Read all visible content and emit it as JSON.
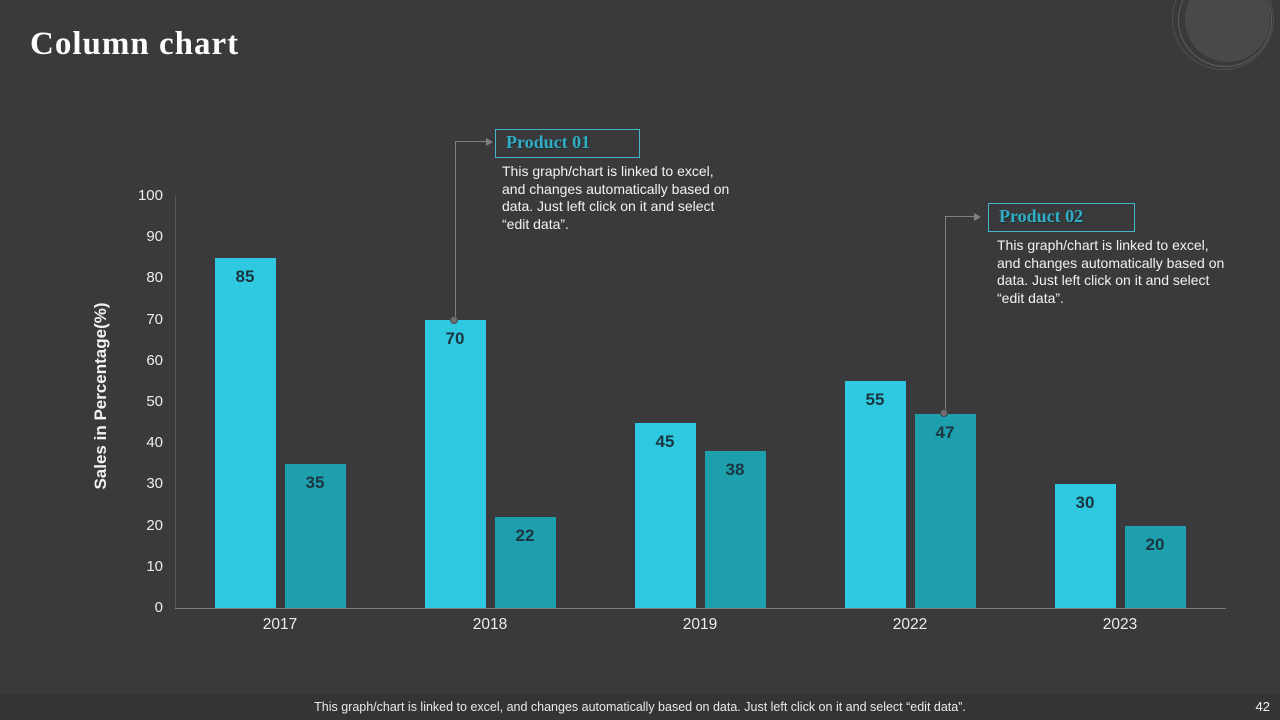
{
  "slide": {
    "title": "Column chart",
    "page_number": "42",
    "footer_note": "This graph/chart is linked to excel, and changes automatically based on data. Just left click on it and select “edit data”."
  },
  "callouts": [
    {
      "title": "Product 01",
      "body": "This graph/chart is linked to excel, and changes automatically based on data. Just left click on it and select “edit data”."
    },
    {
      "title": "Product 02",
      "body": "This graph/chart is linked to excel, and changes automatically based on data. Just left click on it and select “edit data”."
    }
  ],
  "chart_data": {
    "type": "bar",
    "title": "Column chart",
    "categories": [
      "2017",
      "2018",
      "2019",
      "2022",
      "2023"
    ],
    "series": [
      {
        "name": "Product 01",
        "color": "#2ec9e0",
        "values": [
          85,
          70,
          45,
          55,
          30
        ]
      },
      {
        "name": "Product 02",
        "color": "#1d9fae",
        "values": [
          35,
          22,
          38,
          47,
          20
        ]
      }
    ],
    "xlabel": "",
    "ylabel": "Sales in Percentage(%)",
    "ylim": [
      0,
      100
    ],
    "ytick_step": 10,
    "grid": false,
    "legend_position": "callout-annotations",
    "value_labels": true,
    "value_label_color": "#1b3640",
    "background_color": "#3a3a3c",
    "axis_line_color": "#7d7d7d"
  }
}
